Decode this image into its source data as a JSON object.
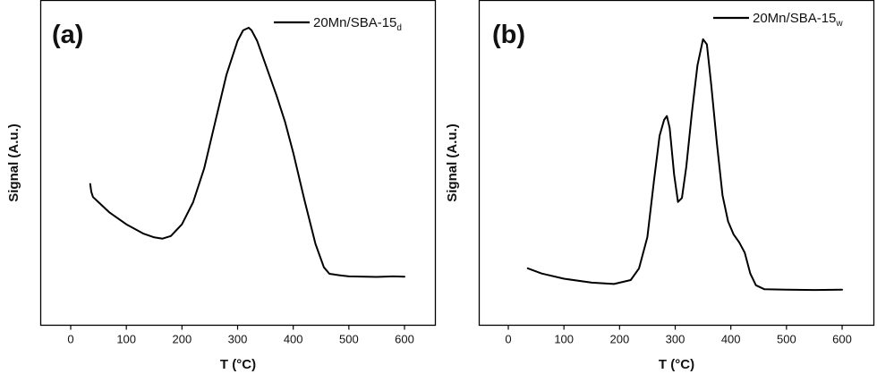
{
  "chart_data": [
    {
      "type": "line",
      "panel_label": "(a)",
      "xlabel": "T (°C)",
      "ylabel": "Signal (A.u.)",
      "xlim": [
        -50,
        650
      ],
      "ylim": [
        0,
        1
      ],
      "xticks": [
        0,
        100,
        200,
        300,
        400,
        500,
        600
      ],
      "y_tick_labels": false,
      "grid": false,
      "legend_position": "top-right",
      "series": [
        {
          "name": "20Mn/SBA-15",
          "name_subscript": "d",
          "color": "#000000",
          "x": [
            35,
            37,
            40,
            50,
            70,
            100,
            130,
            150,
            165,
            180,
            200,
            220,
            240,
            260,
            280,
            300,
            310,
            320,
            325,
            335,
            350,
            370,
            385,
            400,
            420,
            440,
            455,
            465,
            480,
            500,
            550,
            580,
            600
          ],
          "y": [
            0.4,
            0.37,
            0.35,
            0.33,
            0.29,
            0.245,
            0.21,
            0.195,
            0.19,
            0.2,
            0.245,
            0.33,
            0.46,
            0.64,
            0.82,
            0.95,
            0.99,
            1.0,
            0.99,
            0.95,
            0.86,
            0.74,
            0.64,
            0.52,
            0.34,
            0.17,
            0.08,
            0.055,
            0.05,
            0.045,
            0.043,
            0.045,
            0.044
          ]
        }
      ]
    },
    {
      "type": "line",
      "panel_label": "(b)",
      "xlabel": "T (°C)",
      "ylabel": "Signal (A.u.)",
      "xlim": [
        -50,
        650
      ],
      "ylim": [
        0,
        1
      ],
      "xticks": [
        0,
        100,
        200,
        300,
        400,
        500,
        600
      ],
      "y_tick_labels": false,
      "grid": false,
      "legend_position": "top-right",
      "series": [
        {
          "name": "20Mn/SBA-15",
          "name_subscript": "w",
          "color": "#000000",
          "x": [
            35,
            60,
            100,
            150,
            190,
            220,
            235,
            250,
            262,
            272,
            280,
            285,
            290,
            298,
            305,
            312,
            320,
            330,
            340,
            350,
            357,
            365,
            375,
            385,
            395,
            405,
            415,
            425,
            435,
            445,
            460,
            500,
            550,
            600
          ],
          "y": [
            0.1,
            0.08,
            0.06,
            0.045,
            0.04,
            0.055,
            0.1,
            0.22,
            0.44,
            0.61,
            0.67,
            0.685,
            0.64,
            0.46,
            0.355,
            0.37,
            0.49,
            0.7,
            0.88,
            0.98,
            0.96,
            0.8,
            0.58,
            0.38,
            0.28,
            0.23,
            0.2,
            0.16,
            0.08,
            0.035,
            0.02,
            0.018,
            0.017,
            0.018
          ]
        }
      ]
    }
  ]
}
